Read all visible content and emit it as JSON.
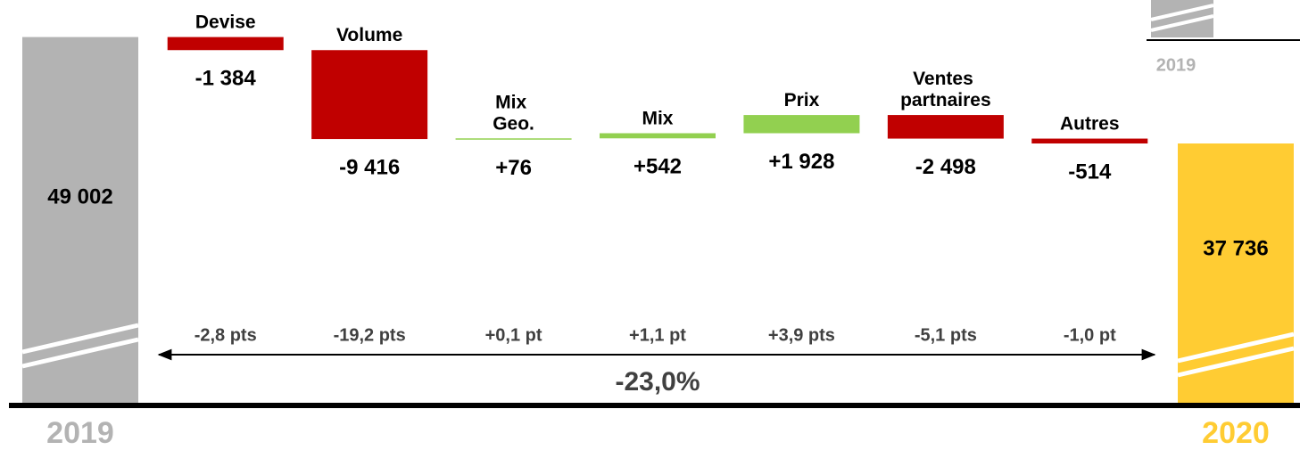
{
  "chart_data": {
    "type": "waterfall",
    "start": {
      "category": "2019",
      "value": 49002,
      "value_label": "49 002",
      "color": "#b3b3b3"
    },
    "end": {
      "category": "2020",
      "value": 37736,
      "value_label": "37 736",
      "color": "#ffcc33"
    },
    "categories": [
      "Devise",
      "Volume",
      "Mix Geo.",
      "Mix",
      "Prix",
      "Ventes partnaires",
      "Autres"
    ],
    "values": [
      -1384,
      -9416,
      76,
      542,
      1928,
      -2498,
      -514
    ],
    "value_labels": [
      "-1 384",
      "-9 416",
      "+76",
      "+542",
      "+1 928",
      "-2 498",
      "-514"
    ],
    "colors": {
      "negative": "#c00000",
      "positive": "#92d050"
    },
    "share_labels": [
      "-2,8 pts",
      "-19,2 pts",
      "+0,1 pt",
      "+1,1 pt",
      "+3,9 pts",
      "-5,1 pts",
      "-1,0 pt"
    ],
    "total_change_label": "-23,0%",
    "corner_label": "2019",
    "ylim": [
      10000,
      50000
    ]
  }
}
